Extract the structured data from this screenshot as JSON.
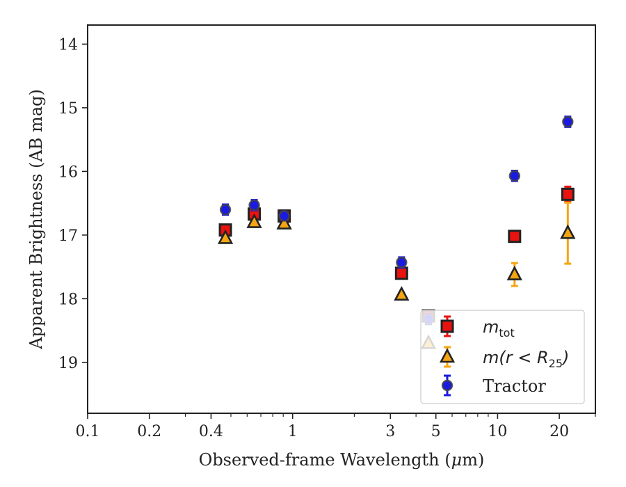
{
  "chart_data": {
    "type": "scatter",
    "xscale": "log",
    "yinverted": true,
    "xlim": [
      0.1,
      30
    ],
    "ylim": [
      19.8,
      13.7
    ],
    "xlabel_parts": [
      "Observed-frame Wavelength (",
      "μ",
      "m)"
    ],
    "ylabel": "Apparent Brightness (AB mag)",
    "xticks": [
      {
        "value": 0.1,
        "label": "0.1"
      },
      {
        "value": 0.2,
        "label": "0.2"
      },
      {
        "value": 0.4,
        "label": "0.4"
      },
      {
        "value": 1,
        "label": "1"
      },
      {
        "value": 3,
        "label": "3"
      },
      {
        "value": 5,
        "label": "5"
      },
      {
        "value": 10,
        "label": "10"
      },
      {
        "value": 20,
        "label": "20"
      }
    ],
    "xminor": [
      0.3,
      0.5,
      0.6,
      0.7,
      0.8,
      0.9,
      2,
      4,
      6,
      7,
      8,
      9,
      30
    ],
    "yticks": [
      14,
      15,
      16,
      17,
      18,
      19
    ],
    "grid": false,
    "legend_position": "lower-right",
    "series": [
      {
        "key": "mtot",
        "legend": {
          "base": "m",
          "sub": "tot"
        },
        "marker": "square",
        "color": "#e8120f",
        "ecolor": "#e8120f",
        "points": [
          {
            "x": 0.47,
            "y": 16.92,
            "err": 0.06
          },
          {
            "x": 0.65,
            "y": 16.67,
            "err": 0.05
          },
          {
            "x": 0.91,
            "y": 16.7,
            "err": 0.05
          },
          {
            "x": 3.4,
            "y": 17.6,
            "err": 0.06
          },
          {
            "x": 4.6,
            "y": 18.27,
            "err": 0.05
          },
          {
            "x": 12.1,
            "y": 17.02,
            "err": 0.05
          },
          {
            "x": 22.0,
            "y": 16.36,
            "err": 0.12
          }
        ]
      },
      {
        "key": "mr25",
        "legend": {
          "base": "m(r < R",
          "sub": "25",
          "tail": ")"
        },
        "marker": "triangle",
        "color": "#f5a512",
        "ecolor": "#f5a512",
        "points": [
          {
            "x": 0.47,
            "y": 17.05,
            "err": 0.02
          },
          {
            "x": 0.65,
            "y": 16.8,
            "err": 0.02
          },
          {
            "x": 0.91,
            "y": 16.82,
            "err": 0.02
          },
          {
            "x": 3.4,
            "y": 17.94,
            "err": 0.03
          },
          {
            "x": 4.6,
            "y": 18.7,
            "err": 0.03
          },
          {
            "x": 12.1,
            "y": 17.62,
            "err": 0.18
          },
          {
            "x": 22.0,
            "y": 16.97,
            "err": 0.48
          }
        ]
      },
      {
        "key": "tractor",
        "legend": {
          "base": "Tractor"
        },
        "marker": "circle",
        "color": "#1a1ae0",
        "ecolor": "#1a1ae0",
        "points": [
          {
            "x": 0.47,
            "y": 16.6,
            "err": 0.08
          },
          {
            "x": 0.65,
            "y": 16.53,
            "err": 0.08
          },
          {
            "x": 0.91,
            "y": 16.7,
            "err": 0.07
          },
          {
            "x": 3.4,
            "y": 17.43,
            "err": 0.08
          },
          {
            "x": 4.6,
            "y": 18.32,
            "err": 0.08
          },
          {
            "x": 12.1,
            "y": 16.07,
            "err": 0.08
          },
          {
            "x": 22.0,
            "y": 15.22,
            "err": 0.08
          }
        ]
      }
    ]
  }
}
